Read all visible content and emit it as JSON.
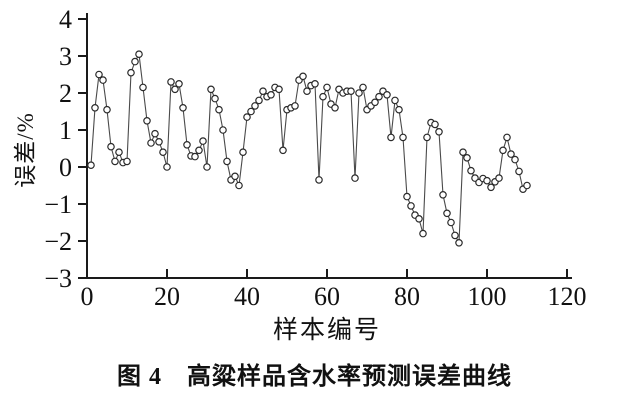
{
  "figure": {
    "caption": "图 4　高粱样品含水率预测误差曲线",
    "xlabel": "样本编号",
    "ylabel": "误差/%"
  },
  "chart_data": {
    "type": "line",
    "title": "",
    "xlabel": "样本编号",
    "ylabel": "误差/%",
    "xlim": [
      0,
      120
    ],
    "ylim": [
      -3,
      4
    ],
    "xticks": [
      0,
      20,
      40,
      60,
      80,
      100,
      120
    ],
    "yticks": [
      4,
      3,
      2,
      1,
      0,
      -1,
      -2,
      -3
    ],
    "grid": false,
    "legend_position": "none",
    "marker": "open-circle",
    "line_color": "#4a4a4a",
    "marker_stroke": "#2a2a2a",
    "marker_fill": "#ffffff",
    "axis_color": "#1a1a1a",
    "x": [
      1,
      2,
      3,
      4,
      5,
      6,
      7,
      8,
      9,
      10,
      11,
      12,
      13,
      14,
      15,
      16,
      17,
      18,
      19,
      20,
      21,
      22,
      23,
      24,
      25,
      26,
      27,
      28,
      29,
      30,
      31,
      32,
      33,
      34,
      35,
      36,
      37,
      38,
      39,
      40,
      41,
      42,
      43,
      44,
      45,
      46,
      47,
      48,
      49,
      50,
      51,
      52,
      53,
      54,
      55,
      56,
      57,
      58,
      59,
      60,
      61,
      62,
      63,
      64,
      65,
      66,
      67,
      68,
      69,
      70,
      71,
      72,
      73,
      74,
      75,
      76,
      77,
      78,
      79,
      80,
      81,
      82,
      83,
      84,
      85,
      86,
      87,
      88,
      89,
      90,
      91,
      92,
      93,
      94,
      95,
      96,
      97,
      98,
      99,
      100,
      101,
      102,
      103,
      104,
      105,
      106,
      107,
      108,
      109,
      110
    ],
    "values": [
      0.05,
      1.6,
      2.5,
      2.35,
      1.55,
      0.55,
      0.15,
      0.4,
      0.12,
      0.15,
      2.55,
      2.85,
      3.05,
      2.15,
      1.25,
      0.65,
      0.9,
      0.68,
      0.4,
      0.0,
      2.3,
      2.1,
      2.25,
      1.6,
      0.6,
      0.3,
      0.28,
      0.45,
      0.7,
      0.0,
      2.1,
      1.85,
      1.55,
      1.0,
      0.15,
      -0.35,
      -0.25,
      -0.5,
      0.4,
      1.35,
      1.5,
      1.65,
      1.8,
      2.05,
      1.9,
      1.95,
      2.15,
      2.1,
      0.45,
      1.55,
      1.6,
      1.65,
      2.35,
      2.45,
      2.05,
      2.2,
      2.25,
      -0.35,
      1.9,
      2.15,
      1.7,
      1.6,
      2.1,
      2.0,
      2.05,
      2.05,
      -0.3,
      2.0,
      2.15,
      1.55,
      1.65,
      1.75,
      1.9,
      2.05,
      1.95,
      0.8,
      1.8,
      1.55,
      0.8,
      -0.8,
      -1.05,
      -1.3,
      -1.4,
      -1.8,
      0.8,
      1.2,
      1.15,
      0.95,
      -0.75,
      -1.25,
      -1.5,
      -1.85,
      -2.05,
      0.4,
      0.25,
      -0.1,
      -0.3,
      -0.42,
      -0.31,
      -0.37,
      -0.55,
      -0.4,
      -0.3,
      0.45,
      0.8,
      0.35,
      0.2,
      -0.12,
      -0.6,
      -0.5
    ]
  }
}
